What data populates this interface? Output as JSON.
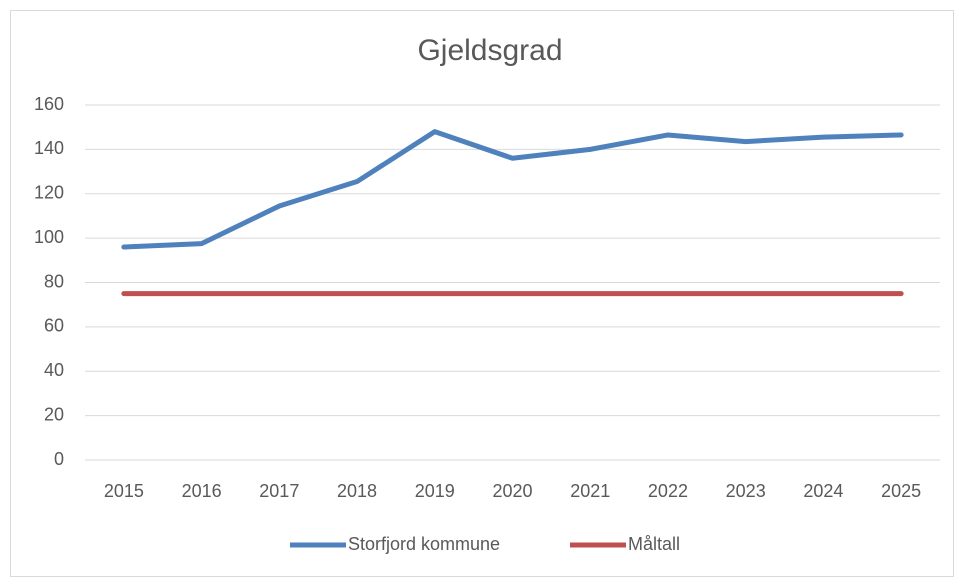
{
  "chart_data": {
    "type": "line",
    "title": "Gjeldsgrad",
    "categories": [
      "2015",
      "2016",
      "2017",
      "2018",
      "2019",
      "2020",
      "2021",
      "2022",
      "2023",
      "2024",
      "2025"
    ],
    "series": [
      {
        "name": "Storfjord kommune",
        "color": "#4f81bd",
        "values": [
          96,
          97.5,
          114.5,
          125.5,
          148,
          136,
          140,
          146.5,
          143.5,
          145.5,
          146.5
        ]
      },
      {
        "name": "Måltall",
        "color": "#c0504d",
        "values": [
          75,
          75,
          75,
          75,
          75,
          75,
          75,
          75,
          75,
          75,
          75
        ]
      }
    ],
    "ylim": [
      0,
      160
    ],
    "yticks": [
      0,
      20,
      40,
      60,
      80,
      100,
      120,
      140,
      160
    ],
    "grid": true,
    "legend": "bottom"
  }
}
